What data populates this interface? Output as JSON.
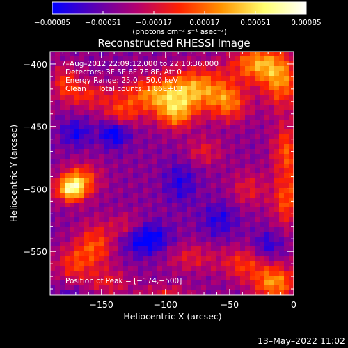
{
  "chart_data": {
    "type": "heatmap",
    "title": "Reconstructed RHESSI Image",
    "xlabel": "Heliocentric X (arcsec)",
    "ylabel": "Heliocentric Y (arcsec)",
    "xlim": [
      -190,
      0
    ],
    "ylim": [
      -585,
      -390
    ],
    "x_ticks": [
      -150,
      -100,
      -50,
      0
    ],
    "x_tick_labels": [
      "−150",
      "−100",
      "−50",
      "0"
    ],
    "y_ticks": [
      -400,
      -450,
      -500,
      -550
    ],
    "y_tick_labels": [
      "−400",
      "−450",
      "−500",
      "−550"
    ],
    "colorbar": {
      "range": [
        -0.00085,
        0.00085
      ],
      "ticks": [
        -0.00085,
        -0.00051,
        -0.00017,
        0.00017,
        0.00051,
        0.00085
      ],
      "tick_labels": [
        "−0.00085",
        "−0.00051",
        "−0.00017",
        "0.00017",
        "0.00051",
        "0.00085"
      ],
      "unit_label": "(photons cm⁻² s⁻¹ asec⁻²)",
      "colors": [
        "#0000ff",
        "#5a00b4",
        "#b4006e",
        "#ff2200",
        "#ff9400",
        "#ffff6e",
        "#ffffff"
      ]
    },
    "annotations": [
      "7–Aug–2012 22:09:12.000 to 22:10:36.000",
      "Detectors: 3F 5F 6F 7F 8F, Att 0",
      "Energy Range: 25.0 – 50.0 keV",
      "Clean     Total counts: 1.86E+03"
    ],
    "peak_label": "Position of Peak = [−174,−500]",
    "peak": [
      -174,
      -500
    ],
    "blobs": [
      {
        "x": -174,
        "y": -500,
        "sx": 8,
        "sy": 7,
        "v": 0.00092
      },
      {
        "x": -165,
        "y": -492,
        "sx": 10,
        "sy": 9,
        "v": 0.0005
      },
      {
        "x": -110,
        "y": -425,
        "sx": 18,
        "sy": 10,
        "v": 0.0006
      },
      {
        "x": -75,
        "y": -420,
        "sx": 18,
        "sy": 12,
        "v": 0.0007
      },
      {
        "x": -92,
        "y": -440,
        "sx": 10,
        "sy": 9,
        "v": 0.0006
      },
      {
        "x": -50,
        "y": -432,
        "sx": 10,
        "sy": 10,
        "v": 0.0005
      },
      {
        "x": -28,
        "y": -400,
        "sx": 14,
        "sy": 10,
        "v": 0.0007
      },
      {
        "x": -10,
        "y": -415,
        "sx": 10,
        "sy": 14,
        "v": 0.0006
      },
      {
        "x": -5,
        "y": -470,
        "sx": 8,
        "sy": 16,
        "v": 0.0005
      },
      {
        "x": -5,
        "y": -510,
        "sx": 8,
        "sy": 14,
        "v": 0.0005
      },
      {
        "x": -135,
        "y": -440,
        "sx": 10,
        "sy": 8,
        "v": 0.0004
      },
      {
        "x": -160,
        "y": -425,
        "sx": 12,
        "sy": 8,
        "v": 0.00035
      },
      {
        "x": -178,
        "y": -415,
        "sx": 8,
        "sy": 10,
        "v": 0.0004
      },
      {
        "x": -155,
        "y": -545,
        "sx": 10,
        "sy": 12,
        "v": 0.0005
      },
      {
        "x": -172,
        "y": -560,
        "sx": 10,
        "sy": 10,
        "v": 0.0004
      },
      {
        "x": -130,
        "y": -530,
        "sx": 10,
        "sy": 7,
        "v": 0.0003
      },
      {
        "x": -70,
        "y": -470,
        "sx": 10,
        "sy": 8,
        "v": 0.0003
      },
      {
        "x": -35,
        "y": -500,
        "sx": 10,
        "sy": 10,
        "v": 0.0003
      },
      {
        "x": -15,
        "y": -575,
        "sx": 12,
        "sy": 10,
        "v": 0.0007
      },
      {
        "x": -40,
        "y": -560,
        "sx": 12,
        "sy": 9,
        "v": 0.0004
      },
      {
        "x": -80,
        "y": -555,
        "sx": 14,
        "sy": 8,
        "v": 0.0003
      },
      {
        "x": -100,
        "y": -585,
        "sx": 14,
        "sy": 6,
        "v": 0.0003
      },
      {
        "x": -145,
        "y": -575,
        "sx": 12,
        "sy": 8,
        "v": 0.0003
      },
      {
        "x": -140,
        "y": -455,
        "sx": 8,
        "sy": 8,
        "v": -0.0005
      },
      {
        "x": -115,
        "y": -540,
        "sx": 12,
        "sy": 9,
        "v": -0.00055
      },
      {
        "x": -88,
        "y": -495,
        "sx": 9,
        "sy": 12,
        "v": -0.0003
      },
      {
        "x": -170,
        "y": -455,
        "sx": 8,
        "sy": 8,
        "v": -0.00035
      },
      {
        "x": -58,
        "y": -525,
        "sx": 10,
        "sy": 10,
        "v": -0.0003
      },
      {
        "x": -20,
        "y": -545,
        "sx": 8,
        "sy": 8,
        "v": -0.0003
      },
      {
        "x": -175,
        "y": -590,
        "sx": 12,
        "sy": 6,
        "v": -0.0003
      }
    ]
  },
  "footer": {
    "date": "13–May–2022 11:02"
  }
}
